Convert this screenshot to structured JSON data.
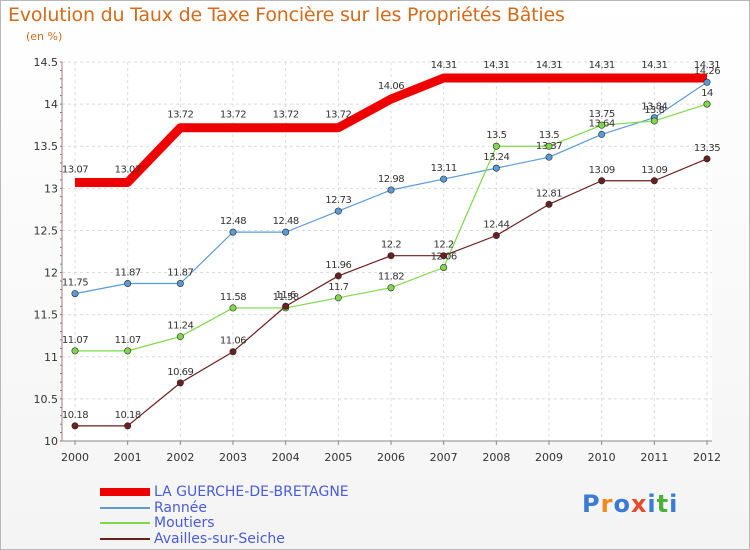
{
  "title": "Evolution du Taux de Taxe Foncière sur les Propriétés Bâties",
  "subtitle": "(en %)",
  "logo": {
    "letters": [
      "P",
      "r",
      "o",
      "x",
      "i",
      "t",
      "i"
    ],
    "colors": [
      "#3a7bd5",
      "#f08a1c",
      "#3a7bd5",
      "#e84a2c",
      "#3a7bd5",
      "#4cae3b",
      "#3a7bd5"
    ]
  },
  "chart_data": {
    "type": "line",
    "title": "Evolution du Taux de Taxe Foncière sur les Propriétés Bâties",
    "ylabel": "(en %)",
    "x": [
      "2000",
      "2001",
      "2002",
      "2003",
      "2004",
      "2005",
      "2006",
      "2007",
      "2008",
      "2009",
      "2010",
      "2011",
      "2012"
    ],
    "ylim": [
      10,
      14.5
    ],
    "yticks": [
      "10",
      "10.5",
      "11",
      "11.5",
      "12",
      "12.5",
      "13",
      "13.5",
      "14",
      "14.5"
    ],
    "grid": true,
    "series": [
      {
        "name": "LA GUERCHE-DE-BRETAGNE",
        "color": "#ee0000",
        "width": 9,
        "markers": false,
        "values": [
          13.07,
          13.07,
          13.72,
          13.72,
          13.72,
          13.72,
          14.06,
          14.31,
          14.31,
          14.31,
          14.31,
          14.31,
          14.31
        ],
        "labels": [
          "13.07",
          "13.07",
          "13.72",
          "13.72",
          "13.72",
          "13.72",
          "14.06",
          "14.31",
          "14.31",
          "14.31",
          "14.31",
          "14.31",
          "14.31"
        ]
      },
      {
        "name": "Rannée",
        "color": "#5b9bd5",
        "width": 1.2,
        "markers": true,
        "values": [
          11.75,
          11.87,
          11.87,
          12.48,
          12.48,
          12.73,
          12.98,
          13.11,
          13.24,
          13.37,
          13.64,
          13.84,
          14.26
        ],
        "labels": [
          "11.75",
          "11.87",
          "11.87",
          "12.48",
          "12.48",
          "12.73",
          "12.98",
          "13.11",
          "13.24",
          "13.37",
          "13.64",
          "13.84",
          "14.26"
        ]
      },
      {
        "name": "Moutiers",
        "color": "#7fd84a",
        "width": 1.2,
        "markers": true,
        "values": [
          11.07,
          11.07,
          11.24,
          11.58,
          11.58,
          11.7,
          11.82,
          12.06,
          13.5,
          13.5,
          13.75,
          13.8,
          14
        ],
        "labels": [
          "11.07",
          "11.07",
          "11.24",
          "11.58",
          "11.58",
          "11.7",
          "11.82",
          "12.06",
          "13.5",
          "13.5",
          "13.75",
          "13.8",
          "14"
        ]
      },
      {
        "name": "Availles-sur-Seiche",
        "color": "#6b1f1f",
        "width": 1.2,
        "markers": true,
        "values": [
          10.18,
          10.18,
          10.69,
          11.06,
          11.6,
          11.96,
          12.2,
          12.2,
          12.44,
          12.81,
          13.09,
          13.09,
          13.35
        ],
        "labels": [
          "10.18",
          "10.18",
          "10.69",
          "11.06",
          "11.6",
          "11.96",
          "12.2",
          "12.2",
          "12.44",
          "12.81",
          "13.09",
          "13.09",
          "13.35"
        ]
      }
    ]
  }
}
